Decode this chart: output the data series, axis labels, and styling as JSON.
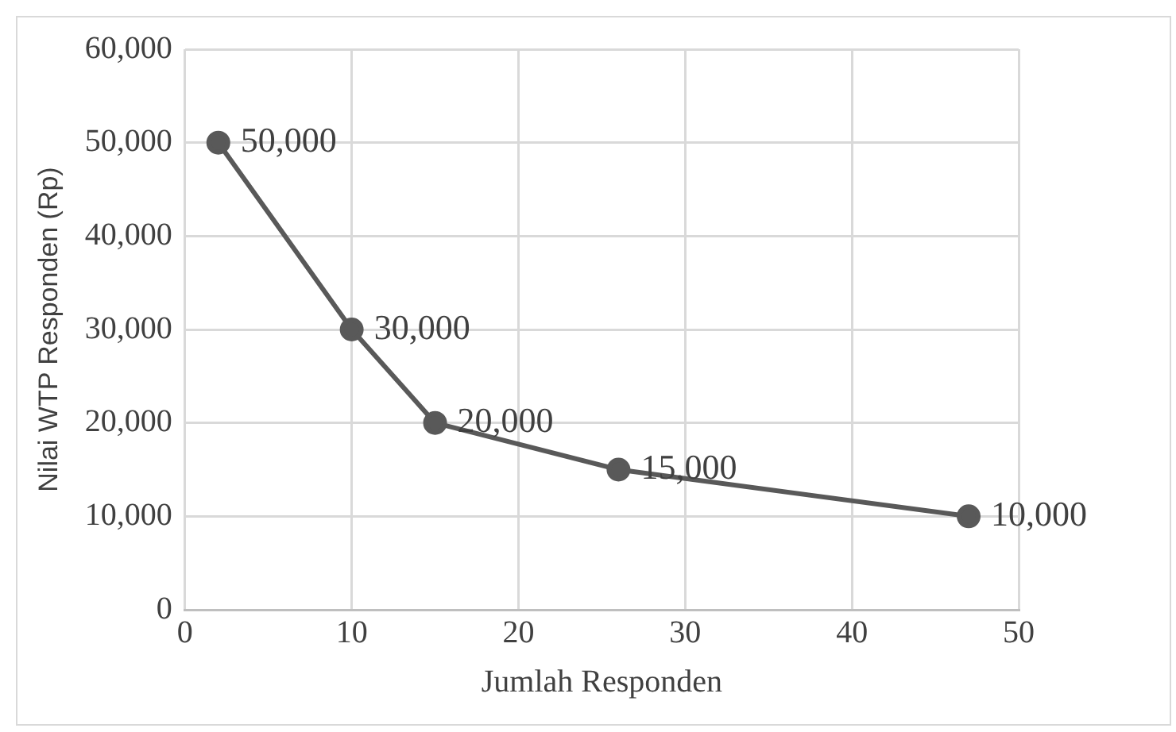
{
  "chart_data": {
    "type": "line",
    "xlabel": "Jumlah Responden",
    "ylabel": "Nilai WTP Responden (Rp)",
    "x": [
      2,
      10,
      15,
      26,
      47
    ],
    "series": [
      {
        "color": "#595959",
        "values": [
          50000,
          30000,
          20000,
          15000,
          10000
        ],
        "value_labels": [
          "50,000",
          "30,000",
          "20,000",
          "15,000",
          "10,000"
        ]
      }
    ],
    "xlim": [
      0,
      50
    ],
    "xticks": [
      0,
      10,
      20,
      30,
      40,
      50
    ],
    "ylim": [
      0,
      60000
    ],
    "yticks": [
      {
        "value": 0,
        "label": "0"
      },
      {
        "value": 10000,
        "label": "10,000"
      },
      {
        "value": 20000,
        "label": "20,000"
      },
      {
        "value": 30000,
        "label": "30,000"
      },
      {
        "value": 40000,
        "label": "40,000"
      },
      {
        "value": 50000,
        "label": "50,000"
      },
      {
        "value": 60000,
        "label": "60,000"
      }
    ],
    "grid": true,
    "legend": false,
    "marker": "circle",
    "line_style": "solid"
  }
}
